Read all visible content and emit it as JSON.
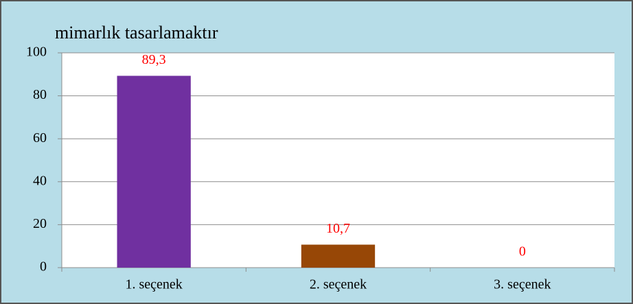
{
  "chart_data": {
    "type": "bar",
    "title": "mimarlık tasarlamaktır",
    "categories": [
      "1. seçenek",
      "2. seçenek",
      "3. seçenek"
    ],
    "values": [
      89.3,
      10.7,
      0
    ],
    "value_labels": [
      "89,3",
      "10,7",
      "0"
    ],
    "colors": [
      "#7030a0",
      "#974706",
      "#4f81bd"
    ],
    "ylim": [
      0,
      100
    ],
    "yticks": [
      0,
      20,
      40,
      60,
      80,
      100
    ],
    "grid": true
  }
}
